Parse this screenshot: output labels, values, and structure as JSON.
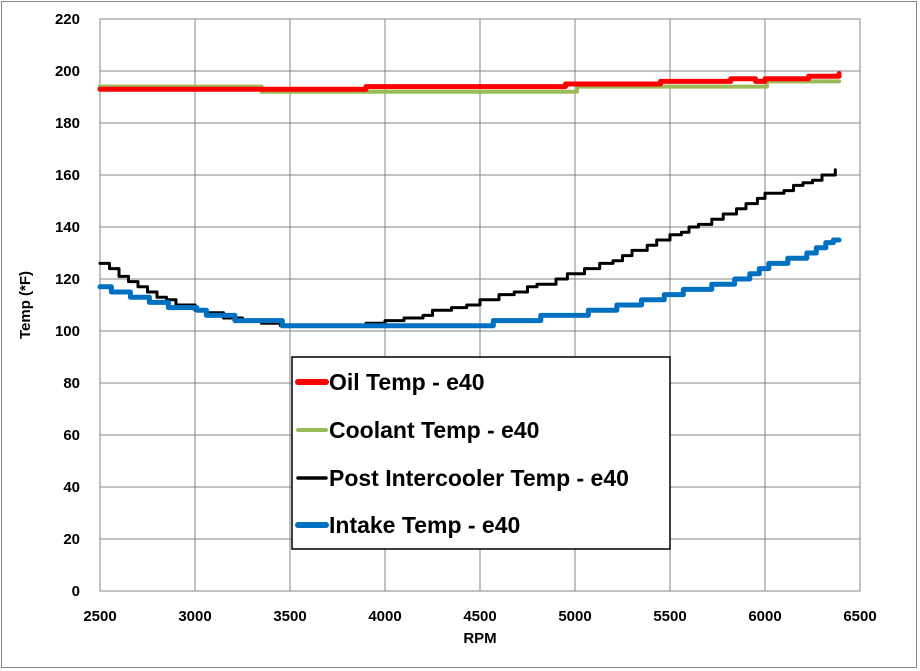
{
  "chart_data": {
    "type": "line",
    "title": "",
    "xlabel": "RPM",
    "ylabel": "Temp (*F)",
    "xlim": [
      2500,
      6500
    ],
    "ylim": [
      0,
      220
    ],
    "x_ticks": [
      2500,
      3000,
      3500,
      4000,
      4500,
      5000,
      5500,
      6000,
      6500
    ],
    "y_ticks": [
      0,
      20,
      40,
      60,
      80,
      100,
      120,
      140,
      160,
      180,
      200,
      220
    ],
    "grid": true,
    "legend_position": "center-left",
    "series": [
      {
        "name": "Oil Temp - e40",
        "color": "#ff0000",
        "points": [
          [
            2500,
            193
          ],
          [
            3300,
            193
          ],
          [
            3400,
            193
          ],
          [
            3900,
            194
          ],
          [
            4900,
            194
          ],
          [
            4950,
            195
          ],
          [
            5400,
            195
          ],
          [
            5450,
            196
          ],
          [
            5800,
            196
          ],
          [
            5820,
            197
          ],
          [
            5900,
            197
          ],
          [
            5950,
            196
          ],
          [
            6000,
            197
          ],
          [
            6200,
            197
          ],
          [
            6230,
            198
          ],
          [
            6370,
            198
          ],
          [
            6390,
            199
          ]
        ]
      },
      {
        "name": "Coolant Temp - e40",
        "color": "#9bbb59",
        "points": [
          [
            2500,
            194
          ],
          [
            3330,
            194
          ],
          [
            3350,
            192
          ],
          [
            4990,
            192
          ],
          [
            5010,
            194
          ],
          [
            6000,
            194
          ],
          [
            6010,
            196
          ],
          [
            6390,
            196
          ]
        ]
      },
      {
        "name": "Post Intercooler Temp - e40",
        "color": "#000000",
        "points": [
          [
            2500,
            126
          ],
          [
            2550,
            124
          ],
          [
            2600,
            121
          ],
          [
            2650,
            119
          ],
          [
            2700,
            117
          ],
          [
            2750,
            115
          ],
          [
            2800,
            113
          ],
          [
            2850,
            112
          ],
          [
            2900,
            110
          ],
          [
            3000,
            108
          ],
          [
            3060,
            107
          ],
          [
            3150,
            105
          ],
          [
            3250,
            104
          ],
          [
            3300,
            104
          ],
          [
            3350,
            103
          ],
          [
            3450,
            102
          ],
          [
            3900,
            103
          ],
          [
            4000,
            104
          ],
          [
            4100,
            105
          ],
          [
            4200,
            106
          ],
          [
            4250,
            108
          ],
          [
            4350,
            109
          ],
          [
            4430,
            110
          ],
          [
            4500,
            112
          ],
          [
            4600,
            114
          ],
          [
            4680,
            115
          ],
          [
            4750,
            117
          ],
          [
            4800,
            118
          ],
          [
            4900,
            120
          ],
          [
            4960,
            122
          ],
          [
            5050,
            124
          ],
          [
            5130,
            126
          ],
          [
            5200,
            127
          ],
          [
            5250,
            129
          ],
          [
            5300,
            131
          ],
          [
            5380,
            133
          ],
          [
            5430,
            135
          ],
          [
            5500,
            137
          ],
          [
            5560,
            138
          ],
          [
            5600,
            140
          ],
          [
            5650,
            141
          ],
          [
            5720,
            143
          ],
          [
            5780,
            145
          ],
          [
            5850,
            147
          ],
          [
            5900,
            149
          ],
          [
            5960,
            151
          ],
          [
            6000,
            153
          ],
          [
            6100,
            154
          ],
          [
            6150,
            156
          ],
          [
            6200,
            157
          ],
          [
            6250,
            158
          ],
          [
            6300,
            160
          ],
          [
            6370,
            162
          ]
        ]
      },
      {
        "name": "Intake Temp - e40",
        "color": "#0070c0",
        "points": [
          [
            2500,
            117
          ],
          [
            2550,
            117
          ],
          [
            2560,
            115
          ],
          [
            2650,
            115
          ],
          [
            2660,
            113
          ],
          [
            2750,
            113
          ],
          [
            2760,
            111
          ],
          [
            2850,
            111
          ],
          [
            2860,
            109
          ],
          [
            3000,
            109
          ],
          [
            3010,
            108
          ],
          [
            3050,
            108
          ],
          [
            3060,
            106
          ],
          [
            3200,
            106
          ],
          [
            3210,
            104
          ],
          [
            3450,
            104
          ],
          [
            3460,
            102
          ],
          [
            4550,
            102
          ],
          [
            4570,
            104
          ],
          [
            4800,
            104
          ],
          [
            4820,
            106
          ],
          [
            5050,
            106
          ],
          [
            5070,
            108
          ],
          [
            5200,
            108
          ],
          [
            5220,
            110
          ],
          [
            5330,
            110
          ],
          [
            5350,
            112
          ],
          [
            5450,
            112
          ],
          [
            5470,
            114
          ],
          [
            5550,
            114
          ],
          [
            5570,
            116
          ],
          [
            5700,
            116
          ],
          [
            5720,
            118
          ],
          [
            5820,
            118
          ],
          [
            5840,
            120
          ],
          [
            5900,
            120
          ],
          [
            5920,
            122
          ],
          [
            5950,
            122
          ],
          [
            5970,
            124
          ],
          [
            6000,
            124
          ],
          [
            6020,
            126
          ],
          [
            6100,
            126
          ],
          [
            6120,
            128
          ],
          [
            6200,
            128
          ],
          [
            6220,
            130
          ],
          [
            6250,
            130
          ],
          [
            6270,
            132
          ],
          [
            6300,
            132
          ],
          [
            6320,
            134
          ],
          [
            6340,
            134
          ],
          [
            6360,
            135
          ],
          [
            6390,
            135
          ]
        ]
      }
    ]
  }
}
